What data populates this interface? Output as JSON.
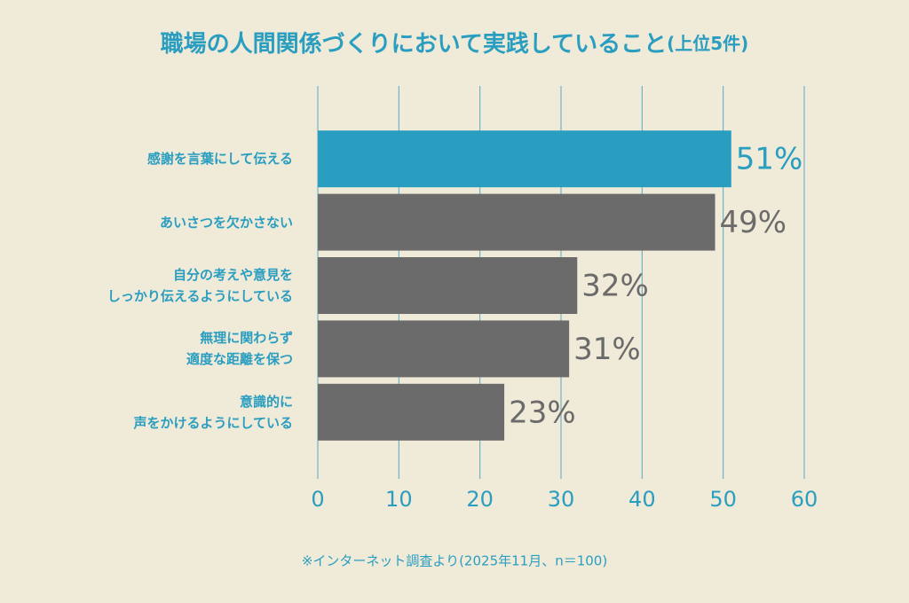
{
  "chart_data": {
    "type": "barh",
    "title": "職場の人間関係づくりにおいて実践していること",
    "title_suffix": "(上位5件)",
    "categories": [
      "感謝を言葉にして伝える",
      "あいさつを欠かさない",
      "自分の考えや意見を\nしっかり伝えるようにしている",
      "無理に関わらず\n適度な距離を保つ",
      "意識的に\n声をかけるようにしている"
    ],
    "values": [
      51,
      49,
      32,
      31,
      23
    ],
    "value_labels": [
      "51%",
      "49%",
      "32%",
      "31%",
      "23%"
    ],
    "colors": [
      "#2a9ec0",
      "#6b6b6b",
      "#6b6b6b",
      "#6b6b6b",
      "#6b6b6b"
    ],
    "xlim": [
      0,
      60
    ],
    "xticks": [
      0,
      10,
      20,
      30,
      40,
      50,
      60
    ],
    "grid": true,
    "note": "※インターネット調査より(2025年11月、n＝100)"
  }
}
